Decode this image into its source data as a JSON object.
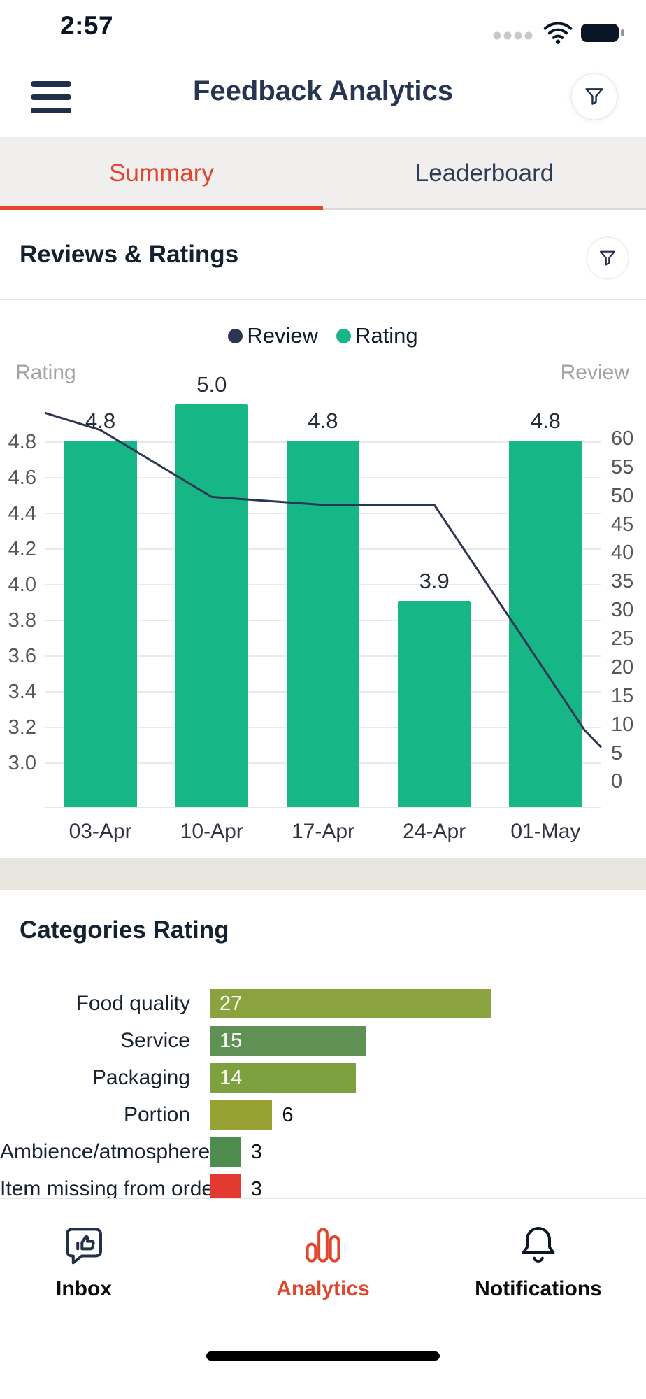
{
  "status_bar": {
    "time": "2:57"
  },
  "header": {
    "title": "Feedback Analytics"
  },
  "tabs": {
    "summary": "Summary",
    "leaderboard": "Leaderboard",
    "active": "Summary"
  },
  "sections": {
    "reviews": {
      "title": "Reviews & Ratings"
    },
    "categories": {
      "title": "Categories Rating"
    }
  },
  "colors": {
    "accent_red": "#E2452E",
    "bar_green": "#17B687",
    "line_navy": "#2B3752",
    "navy_text": "#28354F",
    "tabbar_bg": "#F1EFED",
    "band_bg": "#E9E5DF"
  },
  "icons": {
    "menu": "hamburger",
    "header_filter": "funnel",
    "section_filter": "funnel",
    "inbox": "chat-thumbs-up",
    "analytics": "bar-chart",
    "notifications": "bell"
  },
  "chart_data": [
    {
      "type": "bar+line",
      "title": "Reviews & Ratings",
      "categories": [
        "03-Apr",
        "10-Apr",
        "17-Apr",
        "24-Apr",
        "01-May"
      ],
      "series": [
        {
          "name": "Rating",
          "type": "bar",
          "color": "#17B687",
          "values": [
            4.8,
            5.0,
            4.8,
            3.9,
            4.8
          ],
          "value_labels": [
            "4.8",
            "5.0",
            "4.8",
            "3.9",
            "4.8"
          ]
        },
        {
          "name": "Review",
          "type": "line",
          "color": "#2B3752",
          "points": [
            [
              0,
              64.5
            ],
            [
              0.1,
              61.5
            ],
            [
              0.3,
              49.8
            ],
            [
              0.5,
              48.4
            ],
            [
              0.7,
              48.4
            ],
            [
              0.97,
              9
            ],
            [
              1,
              6
            ]
          ]
        }
      ],
      "left_axis": {
        "label": "Rating",
        "ticks": [
          "4.8",
          "4.6",
          "4.4",
          "4.2",
          "4.0",
          "3.8",
          "3.6",
          "3.4",
          "3.2",
          "3.0"
        ],
        "min": 2.75,
        "max": 5.08
      },
      "right_axis": {
        "label": "Review",
        "ticks": [
          60,
          55,
          50,
          45,
          40,
          35,
          30,
          25,
          20,
          15,
          10,
          5,
          0
        ],
        "min": -4.6,
        "max": 68.2
      },
      "legend": [
        {
          "label": "Review",
          "color": "#2B3752"
        },
        {
          "label": "Rating",
          "color": "#17B687"
        }
      ],
      "grid": true,
      "legend_position": "top-center"
    },
    {
      "type": "bar",
      "orientation": "horizontal",
      "title": "Categories Rating",
      "categories": [
        "Food quality",
        "Service",
        "Packaging",
        "Portion",
        "Ambience/atmosphere",
        "Item missing from order"
      ],
      "values": [
        27,
        15,
        14,
        6,
        3,
        3
      ],
      "colors": [
        "#8BA33E",
        "#5F9154",
        "#7FA03F",
        "#97A134",
        "#4E8C50",
        "#E23A30"
      ],
      "xlim": [
        0,
        40
      ]
    }
  ],
  "bottom_nav": {
    "items": [
      {
        "label": "Inbox",
        "active": false
      },
      {
        "label": "Analytics",
        "active": true
      },
      {
        "label": "Notifications",
        "active": false
      }
    ]
  }
}
